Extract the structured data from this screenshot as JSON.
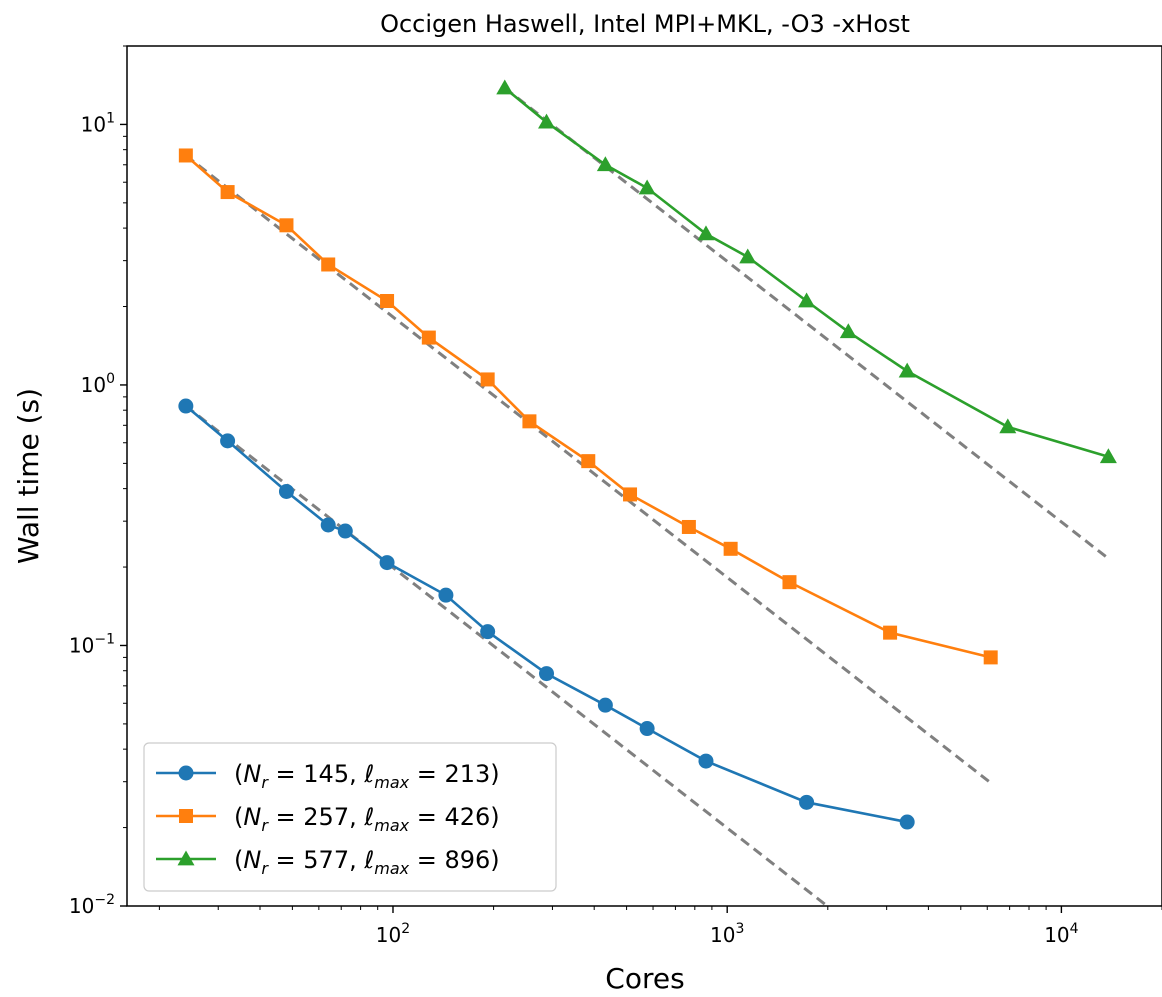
{
  "chart_data": {
    "type": "line",
    "title": "Occigen Haswell, Intel MPI+MKL, -O3 -xHost",
    "xlabel": "Cores",
    "ylabel": "Wall time (s)",
    "xscale": "log",
    "yscale": "log",
    "xlim": [
      16,
      20000
    ],
    "ylim": [
      0.01,
      20
    ],
    "x_ticks": [
      {
        "value": 100,
        "base": "10",
        "exp": "2"
      },
      {
        "value": 1000,
        "base": "10",
        "exp": "3"
      },
      {
        "value": 10000,
        "base": "10",
        "exp": "4"
      }
    ],
    "y_ticks": [
      {
        "value": 0.01,
        "base": "10",
        "exp": "−2"
      },
      {
        "value": 0.1,
        "base": "10",
        "exp": "−1"
      },
      {
        "value": 1,
        "base": "10",
        "exp": "0"
      },
      {
        "value": 10,
        "base": "10",
        "exp": "1"
      }
    ],
    "grid": false,
    "legend_position": "lower-left",
    "series": [
      {
        "name": "(N_r = 145, ℓ_max = 213)",
        "legend_parts": {
          "open": "(",
          "n_sym": "N",
          "n_sub": "r",
          "n_val": " = 145, ",
          "l_sym": "ℓ",
          "l_sub": "max",
          "l_val": " = 213)"
        },
        "color": "#1f77b4",
        "marker": "circle",
        "x": [
          24,
          32,
          48,
          64,
          72,
          96,
          144,
          192,
          288,
          432,
          576,
          864,
          1728,
          3456
        ],
        "y": [
          0.83,
          0.61,
          0.39,
          0.29,
          0.275,
          0.208,
          0.156,
          0.113,
          0.078,
          0.059,
          0.048,
          0.036,
          0.025,
          0.021
        ]
      },
      {
        "name": "(N_r = 257, ℓ_max = 426)",
        "legend_parts": {
          "open": "(",
          "n_sym": "N",
          "n_sub": "r",
          "n_val": " = 257, ",
          "l_sym": "ℓ",
          "l_sub": "max",
          "l_val": " = 426)"
        },
        "color": "#ff7f0e",
        "marker": "square",
        "x": [
          24,
          32,
          48,
          64,
          96,
          128,
          192,
          256,
          384,
          512,
          768,
          1024,
          1536,
          3072,
          6144
        ],
        "y": [
          7.6,
          5.5,
          4.1,
          2.9,
          2.1,
          1.52,
          1.05,
          0.725,
          0.51,
          0.38,
          0.285,
          0.235,
          0.175,
          0.112,
          0.09
        ]
      },
      {
        "name": "(N_r = 577, ℓ_max = 896)",
        "legend_parts": {
          "open": "(",
          "n_sym": "N",
          "n_sub": "r",
          "n_val": " = 577, ",
          "l_sym": "ℓ",
          "l_sub": "max",
          "l_val": " = 896)"
        },
        "color": "#2ca02c",
        "marker": "triangle",
        "x": [
          216,
          288,
          432,
          576,
          864,
          1152,
          1728,
          2304,
          3456,
          6912,
          13824
        ],
        "y": [
          13.8,
          10.2,
          7.0,
          5.7,
          3.8,
          3.1,
          2.1,
          1.6,
          1.13,
          0.69,
          0.53
        ]
      }
    ],
    "reference_lines": [
      {
        "color": "#808080",
        "style": "dashed",
        "x": [
          24,
          2000
        ],
        "y": [
          0.83,
          0.00996
        ]
      },
      {
        "color": "#808080",
        "style": "dashed",
        "x": [
          24,
          6144
        ],
        "y": [
          7.6,
          0.0297
        ]
      },
      {
        "color": "#808080",
        "style": "dashed",
        "x": [
          216,
          13824
        ],
        "y": [
          13.8,
          0.2156
        ]
      }
    ]
  }
}
